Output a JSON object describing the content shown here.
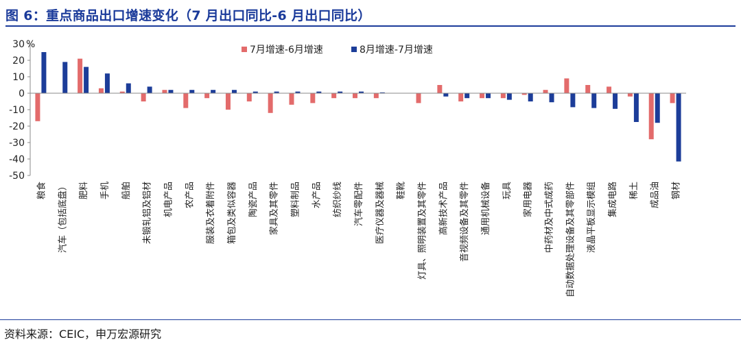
{
  "title": "图 6：重点商品出口增速变化（7 月出口同比-6 月出口同比）",
  "source": "资料来源：CEIC，申万宏源研究",
  "colors": {
    "series1": "#e36b6b",
    "series2": "#1c3d99",
    "axis": "#888888"
  },
  "chart_data": {
    "type": "bar",
    "ylabel": "%",
    "ylim": [
      -50,
      30
    ],
    "yticks": [
      30,
      20,
      10,
      0,
      -10,
      -20,
      -30,
      -40,
      -50
    ],
    "grid": false,
    "legend": "top",
    "categories": [
      "粮食",
      "汽车（包括底盘）",
      "肥料",
      "手机",
      "船舶",
      "未锻轧铝及铝材",
      "机电产品",
      "农产品",
      "服装及衣着附件",
      "箱包及类似容器",
      "陶瓷产品",
      "家具及其零件",
      "塑料制品",
      "水产品",
      "纺织纱线",
      "汽车零配件",
      "医疗仪器及器械",
      "鞋靴",
      "灯具、照明装置及其零件",
      "高新技术产品",
      "音视频设备及其零件",
      "通用机械设备",
      "玩具",
      "家用电器",
      "中药材及中式成药",
      "自动数据处理设备及其零部件",
      "液晶平板显示模组",
      "集成电路",
      "稀土",
      "成品油",
      "钢材"
    ],
    "series": [
      {
        "name": "7月增速-6月增速",
        "values": [
          -17,
          0,
          21,
          3,
          1,
          -5,
          2,
          -9,
          -3,
          -10,
          -5,
          -12,
          -7,
          -6,
          -3,
          -3,
          -3,
          0,
          -6,
          5,
          -5,
          -3,
          -3,
          -1,
          2,
          9,
          5,
          4,
          -2,
          -28,
          -6
        ]
      },
      {
        "name": "8月增速-7月增速",
        "values": [
          25,
          19,
          16,
          12,
          6,
          4,
          2,
          2,
          2,
          2,
          1,
          1,
          1,
          1,
          1,
          1,
          0.5,
          0,
          0,
          -2,
          -3,
          -3,
          -4,
          -5,
          -5.5,
          -8.5,
          -9,
          -9.5,
          -17.5,
          -18,
          -41.5
        ]
      }
    ]
  }
}
